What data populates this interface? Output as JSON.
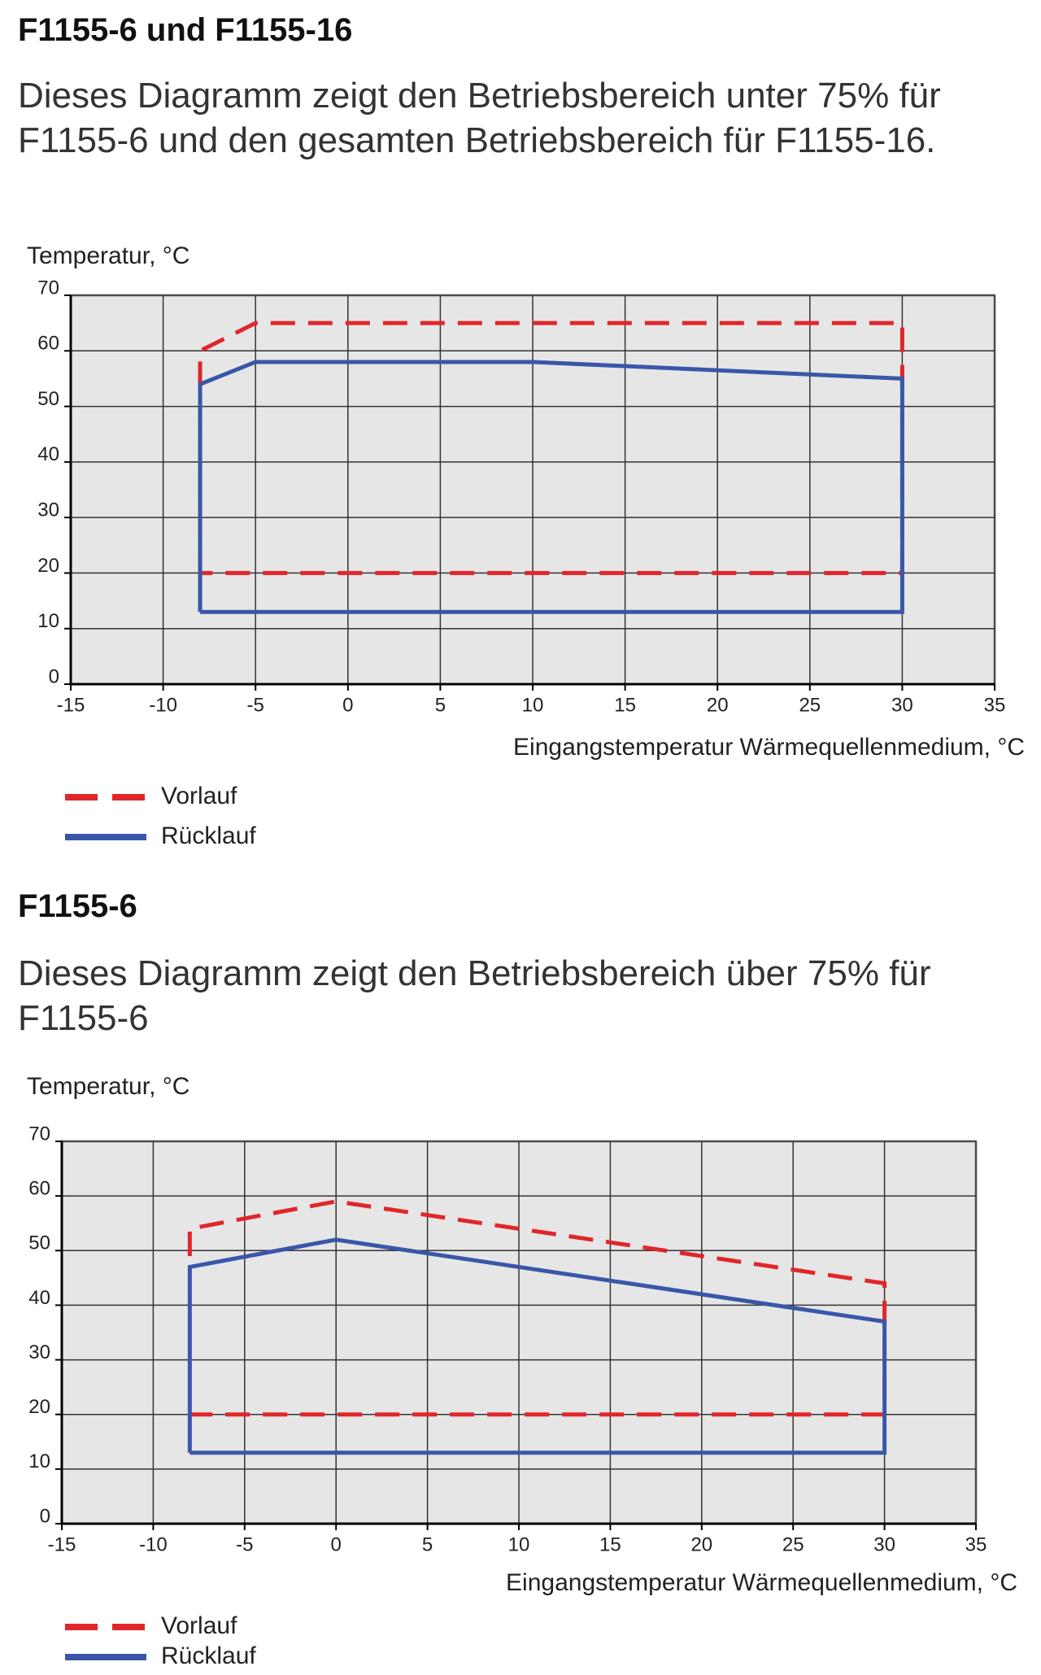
{
  "chart_data": [
    {
      "type": "line",
      "title": "F1155-6 und F1155-16",
      "subtitle": "Dieses Diagramm zeigt den Betriebsbereich unter 75% für F1155-6 und den gesamten Betriebsbereich für F1155-16.",
      "ylabel": "Temperatur, °C",
      "xlabel": "Eingangstemperatur Wärmequellenmedium, °C",
      "xlim": [
        -15,
        35
      ],
      "xticks": [
        -15,
        -10,
        -5,
        0,
        5,
        10,
        15,
        20,
        25,
        30,
        35
      ],
      "ylim": [
        0,
        70
      ],
      "yticks": [
        0,
        10,
        20,
        30,
        40,
        50,
        60,
        70
      ],
      "grid": true,
      "series": [
        {
          "name": "Vorlauf",
          "color": "#e0262b",
          "dashed": true,
          "x": [
            -8,
            -8,
            -5,
            30,
            30,
            -8
          ],
          "values": [
            20,
            60,
            65,
            65,
            20,
            20
          ]
        },
        {
          "name": "Rücklauf",
          "color": "#3a56a8",
          "dashed": false,
          "x": [
            -8,
            -8,
            -5,
            10,
            30,
            30,
            -8
          ],
          "values": [
            13,
            54,
            58,
            58,
            55,
            13,
            13
          ]
        }
      ]
    },
    {
      "type": "line",
      "title": "F1155-6",
      "subtitle": "Dieses Diagramm zeigt den Betriebsbereich über 75% für F1155-6",
      "ylabel": "Temperatur, °C",
      "xlabel": "Eingangstemperatur Wärmequellenmedium, °C",
      "xlim": [
        -15,
        35
      ],
      "xticks": [
        -15,
        -10,
        -5,
        0,
        5,
        10,
        15,
        20,
        25,
        30,
        35
      ],
      "ylim": [
        0,
        70
      ],
      "yticks": [
        0,
        10,
        20,
        30,
        40,
        50,
        60,
        70
      ],
      "grid": true,
      "series": [
        {
          "name": "Vorlauf",
          "color": "#e0262b",
          "dashed": true,
          "x": [
            -8,
            -8,
            0,
            30,
            30,
            -8
          ],
          "values": [
            49,
            54,
            59,
            44,
            20,
            20
          ]
        },
        {
          "name": "Rücklauf",
          "color": "#3a56a8",
          "dashed": false,
          "x": [
            -8,
            -8,
            0,
            30,
            30,
            -8
          ],
          "values": [
            13,
            47,
            52,
            37,
            13,
            13
          ]
        }
      ]
    }
  ]
}
